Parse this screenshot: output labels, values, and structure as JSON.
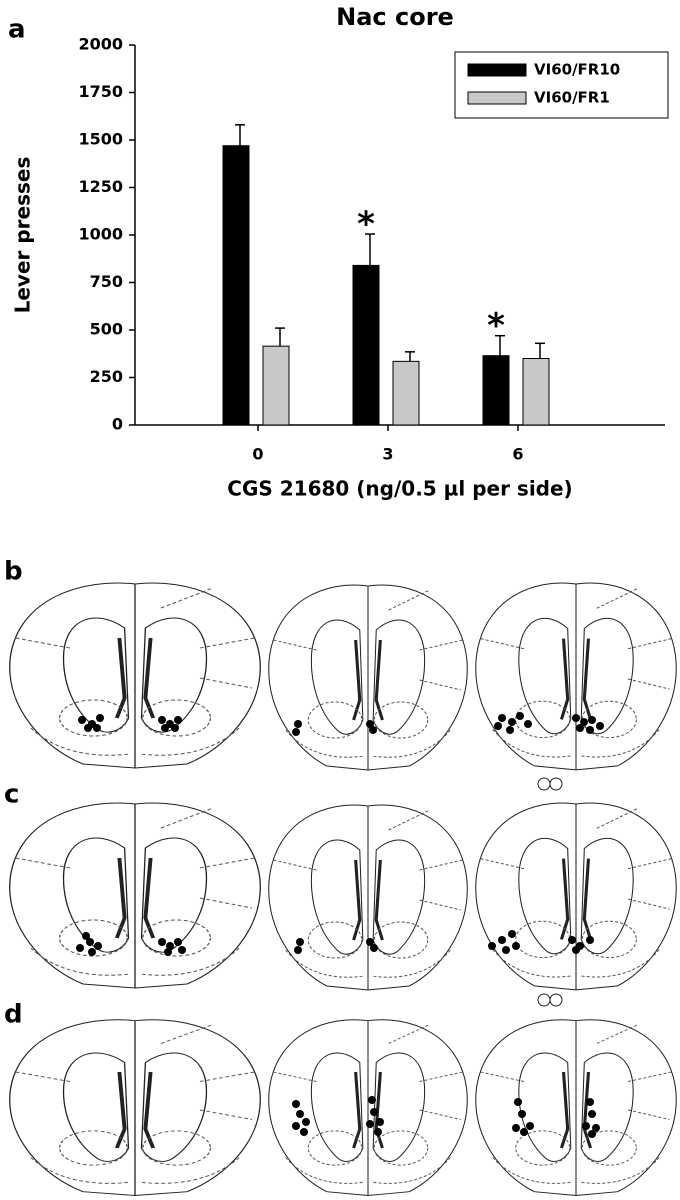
{
  "panel_labels": [
    "a",
    "b",
    "c",
    "d"
  ],
  "chart_data": {
    "type": "bar",
    "title": "Nac core",
    "x_label": "CGS 21680 (ng/0.5 µl per side)",
    "y_label": "Lever presses",
    "categories": [
      "0",
      "3",
      "6"
    ],
    "series": [
      {
        "name": "VI60/FR10",
        "color": "#000000",
        "values": [
          1470,
          840,
          365
        ],
        "errors": [
          110,
          165,
          105
        ],
        "markers": [
          null,
          "*",
          "*"
        ]
      },
      {
        "name": "VI60/FR1",
        "color": "#c8c8c8",
        "values": [
          415,
          335,
          350
        ],
        "errors": [
          95,
          50,
          80
        ],
        "markers": [
          null,
          null,
          null
        ]
      }
    ],
    "ylim": [
      0,
      2000
    ],
    "yticks": [
      0,
      250,
      500,
      750,
      1000,
      1250,
      1500,
      1750,
      2000
    ],
    "legend": "upper right",
    "grid": false
  }
}
